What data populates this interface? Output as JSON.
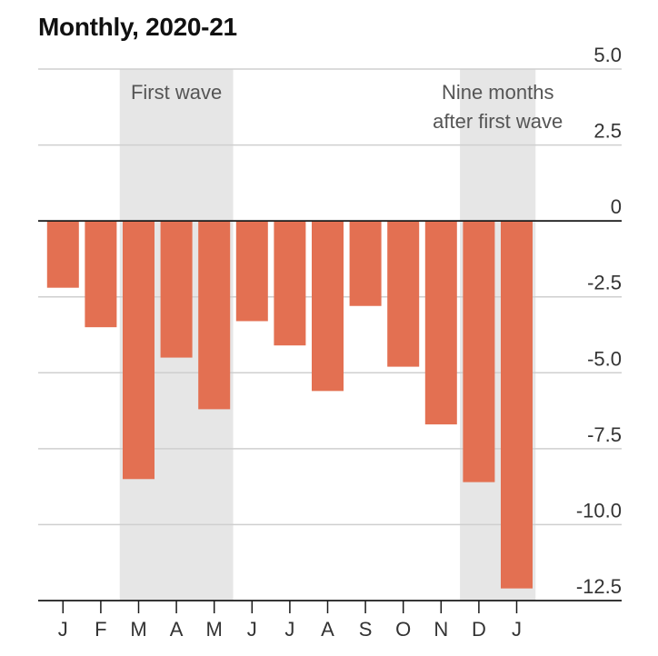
{
  "chart_data": {
    "type": "bar",
    "title": "Monthly, 2020-21",
    "categories": [
      "J",
      "F",
      "M",
      "A",
      "M",
      "J",
      "J",
      "A",
      "S",
      "O",
      "N",
      "D",
      "J"
    ],
    "values": [
      -2.2,
      -3.5,
      -8.5,
      -4.5,
      -6.2,
      -3.3,
      -4.1,
      -5.6,
      -2.8,
      -4.8,
      -6.7,
      -8.6,
      -12.1
    ],
    "ylim": [
      -12.5,
      5.0
    ],
    "yticks": [
      5.0,
      2.5,
      0,
      -2.5,
      -5.0,
      -7.5,
      -10.0,
      -12.5
    ],
    "ytick_labels": [
      "5.0",
      "2.5",
      "0",
      "-2.5",
      "-5.0",
      "-7.5",
      "-10.0",
      "-12.5"
    ],
    "grid": true,
    "bar_color": "#e37052",
    "shade_color": "#e6e6e6",
    "shaded_regions": [
      {
        "from_index": 2,
        "to_index": 4,
        "label_lines": [
          "First wave"
        ]
      },
      {
        "from_index": 11,
        "to_index": 12,
        "label_lines": [
          "Nine months",
          "after first wave"
        ]
      }
    ]
  }
}
